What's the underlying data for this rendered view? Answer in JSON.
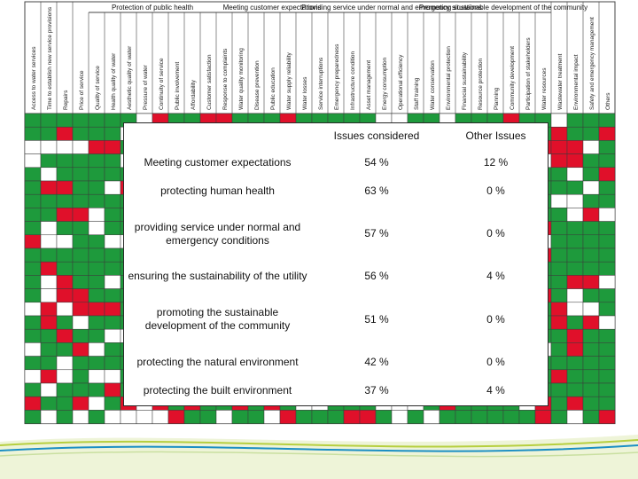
{
  "background_table": {
    "group_headers": [
      "Protection of public health",
      "Meeting customer expectations",
      "Providing service under normal and emergency situations",
      "Promoting sustainable development of the community"
    ],
    "column_headers": [
      "Access to water services",
      "Time to establish new service provisions",
      "Repairs",
      "Price of service",
      "Quality of service",
      "Health quality of water",
      "Aesthetic quality of water",
      "Pressure of water",
      "Continuity of service",
      "Public involvement",
      "Affordability",
      "Customer satisfaction",
      "Response to complaints",
      "Water quality monitoring",
      "Disease prevention",
      "Public education",
      "Water supply reliability",
      "Water losses",
      "Service interruptions",
      "Emergency preparedness",
      "Infrastructure condition",
      "Asset management",
      "Energy consumption",
      "Operational efficiency",
      "Staff training",
      "Water conservation",
      "Environmental protection",
      "Financial sustainability",
      "Resource protection",
      "Planning",
      "Community development",
      "Participation of stakeholders",
      "Water resources",
      "Wastewater treatment",
      "Environmental impact",
      "Safety and emergency management",
      "Others"
    ],
    "colors": {
      "green": "#1e9a3c",
      "red": "#e0102a",
      "white": "#ffffff",
      "line": "#444444"
    }
  },
  "summary_table": {
    "headers": {
      "criteria": "",
      "issues_considered": "Issues considered",
      "other_issues": "Other Issues"
    },
    "rows": [
      {
        "criteria": "Meeting customer expectations",
        "issues_considered": "54 %",
        "other_issues": "12 %"
      },
      {
        "criteria": "protecting human health",
        "issues_considered": "63 %",
        "other_issues": "0 %"
      },
      {
        "criteria": "providing service under normal and emergency conditions",
        "issues_considered": "57 %",
        "other_issues": "0 %"
      },
      {
        "criteria": "ensuring the sustainability of the utility",
        "issues_considered": "56 %",
        "other_issues": "4 %"
      },
      {
        "criteria": "promoting the sustainable development of the community",
        "issues_considered": "51 %",
        "other_issues": "0 %"
      },
      {
        "criteria": "protecting the natural environment",
        "issues_considered": "42 %",
        "other_issues": "0 %"
      },
      {
        "criteria": "protecting the built environment",
        "issues_considered": "37 %",
        "other_issues": "4 %"
      }
    ]
  }
}
